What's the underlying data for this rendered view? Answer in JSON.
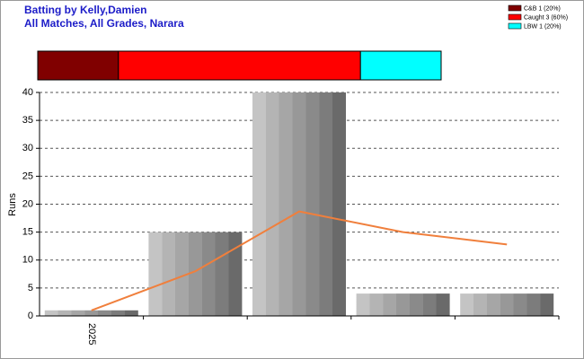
{
  "chart_data": {
    "type": "bar",
    "title": "Batting by Kelly,Damien",
    "subtitle": "All Matches, All Grades, Narara",
    "y_label": "Runs",
    "categories": [
      "2025",
      null,
      null,
      null,
      null
    ],
    "series": [
      {
        "kind": "bar",
        "values": [
          1,
          15,
          40,
          4,
          4
        ]
      },
      {
        "kind": "line",
        "color": "#f07f3c",
        "values": [
          1,
          8,
          18.7,
          15,
          12.8
        ]
      }
    ],
    "ylim": [
      0,
      40
    ],
    "yticks": [
      0,
      5,
      10,
      15,
      20,
      25,
      30,
      35,
      40
    ],
    "grid": true,
    "dismissals": [
      {
        "name": "C&B 1 (20%)",
        "color": "#800000",
        "value": 1
      },
      {
        "name": "Caught 3 (60%)",
        "color": "#ff0000",
        "value": 3
      },
      {
        "name": "LBW 1 (20%)",
        "color": "#00ffff",
        "value": 1
      }
    ]
  }
}
